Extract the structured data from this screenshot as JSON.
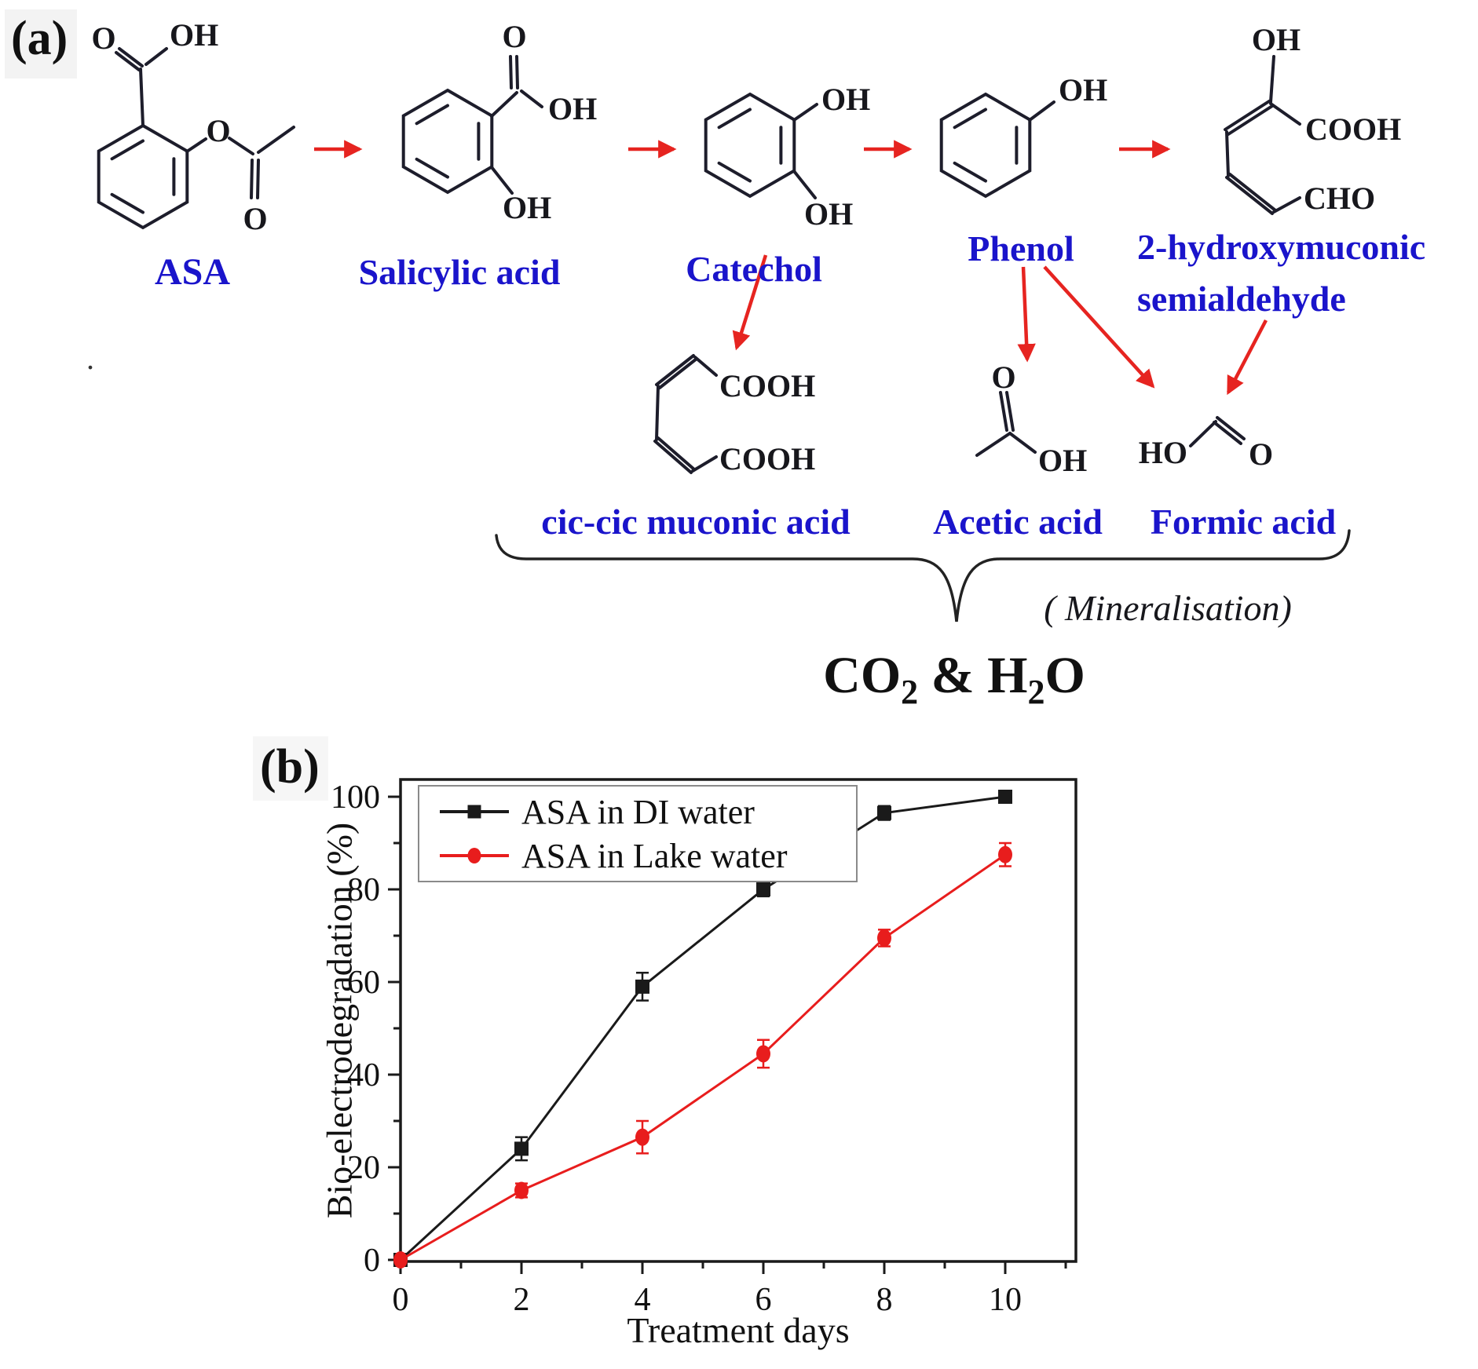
{
  "colors": {
    "compound_label_blue": "#1a14cb",
    "arrow_red": "#e62420",
    "bond_black": "#1d1d2b",
    "series_black": "#1a1a1a",
    "series_red": "#e81d1d"
  },
  "panel_a": {
    "label": "(a)",
    "compounds": {
      "asa": "ASA",
      "salicylic": "Salicylic acid",
      "catechol": "Catechol",
      "phenol": "Phenol",
      "hms_line1": "2-hydroxymuconic",
      "hms_line2": "semialdehyde",
      "muconic": "cic-cic muconic acid",
      "acetic": "Acetic acid",
      "formic": "Formic acid"
    },
    "atoms": {
      "o": "O",
      "oh": "OH",
      "ho": "HO",
      "cooh": "COOH",
      "cho": "CHO"
    },
    "mineralisation": "( Mineralisation)",
    "end_product": {
      "p1": "CO",
      "s1": "2",
      "p2": " & H",
      "s2": "2",
      "p3": "O"
    },
    "stray_dot": "."
  },
  "panel_b": {
    "label": "(b)"
  },
  "chart_data": {
    "type": "line",
    "title": "",
    "xlabel": "Treatment days",
    "ylabel": "Bio-electrodegradation (%)",
    "x_ticks": [
      0,
      2,
      4,
      6,
      8,
      10
    ],
    "y_ticks": [
      0,
      20,
      40,
      60,
      80,
      100
    ],
    "x_minor_ticks": [
      1,
      3,
      5,
      7,
      9,
      11
    ],
    "y_minor_ticks": [
      10,
      30,
      50,
      70,
      90
    ],
    "xlim": [
      0,
      11.2
    ],
    "ylim": [
      0,
      104
    ],
    "grid": "off",
    "legend_position": "top-left",
    "series": [
      {
        "name": "ASA in DI water",
        "color": "#1a1a1a",
        "marker": "square",
        "x": [
          0,
          2,
          4,
          6,
          8,
          10
        ],
        "y": [
          0,
          24,
          59,
          80,
          96.5,
          100
        ],
        "yerr": [
          0,
          2.5,
          3,
          1.5,
          1.5,
          0.8
        ]
      },
      {
        "name": "ASA in Lake water",
        "color": "#e81d1d",
        "marker": "circle",
        "x": [
          0,
          2,
          4,
          6,
          8,
          10
        ],
        "y": [
          0,
          15,
          26.5,
          44.5,
          69.5,
          87.5
        ],
        "yerr": [
          0,
          1.5,
          3.5,
          3,
          1.8,
          2.5
        ]
      }
    ]
  }
}
